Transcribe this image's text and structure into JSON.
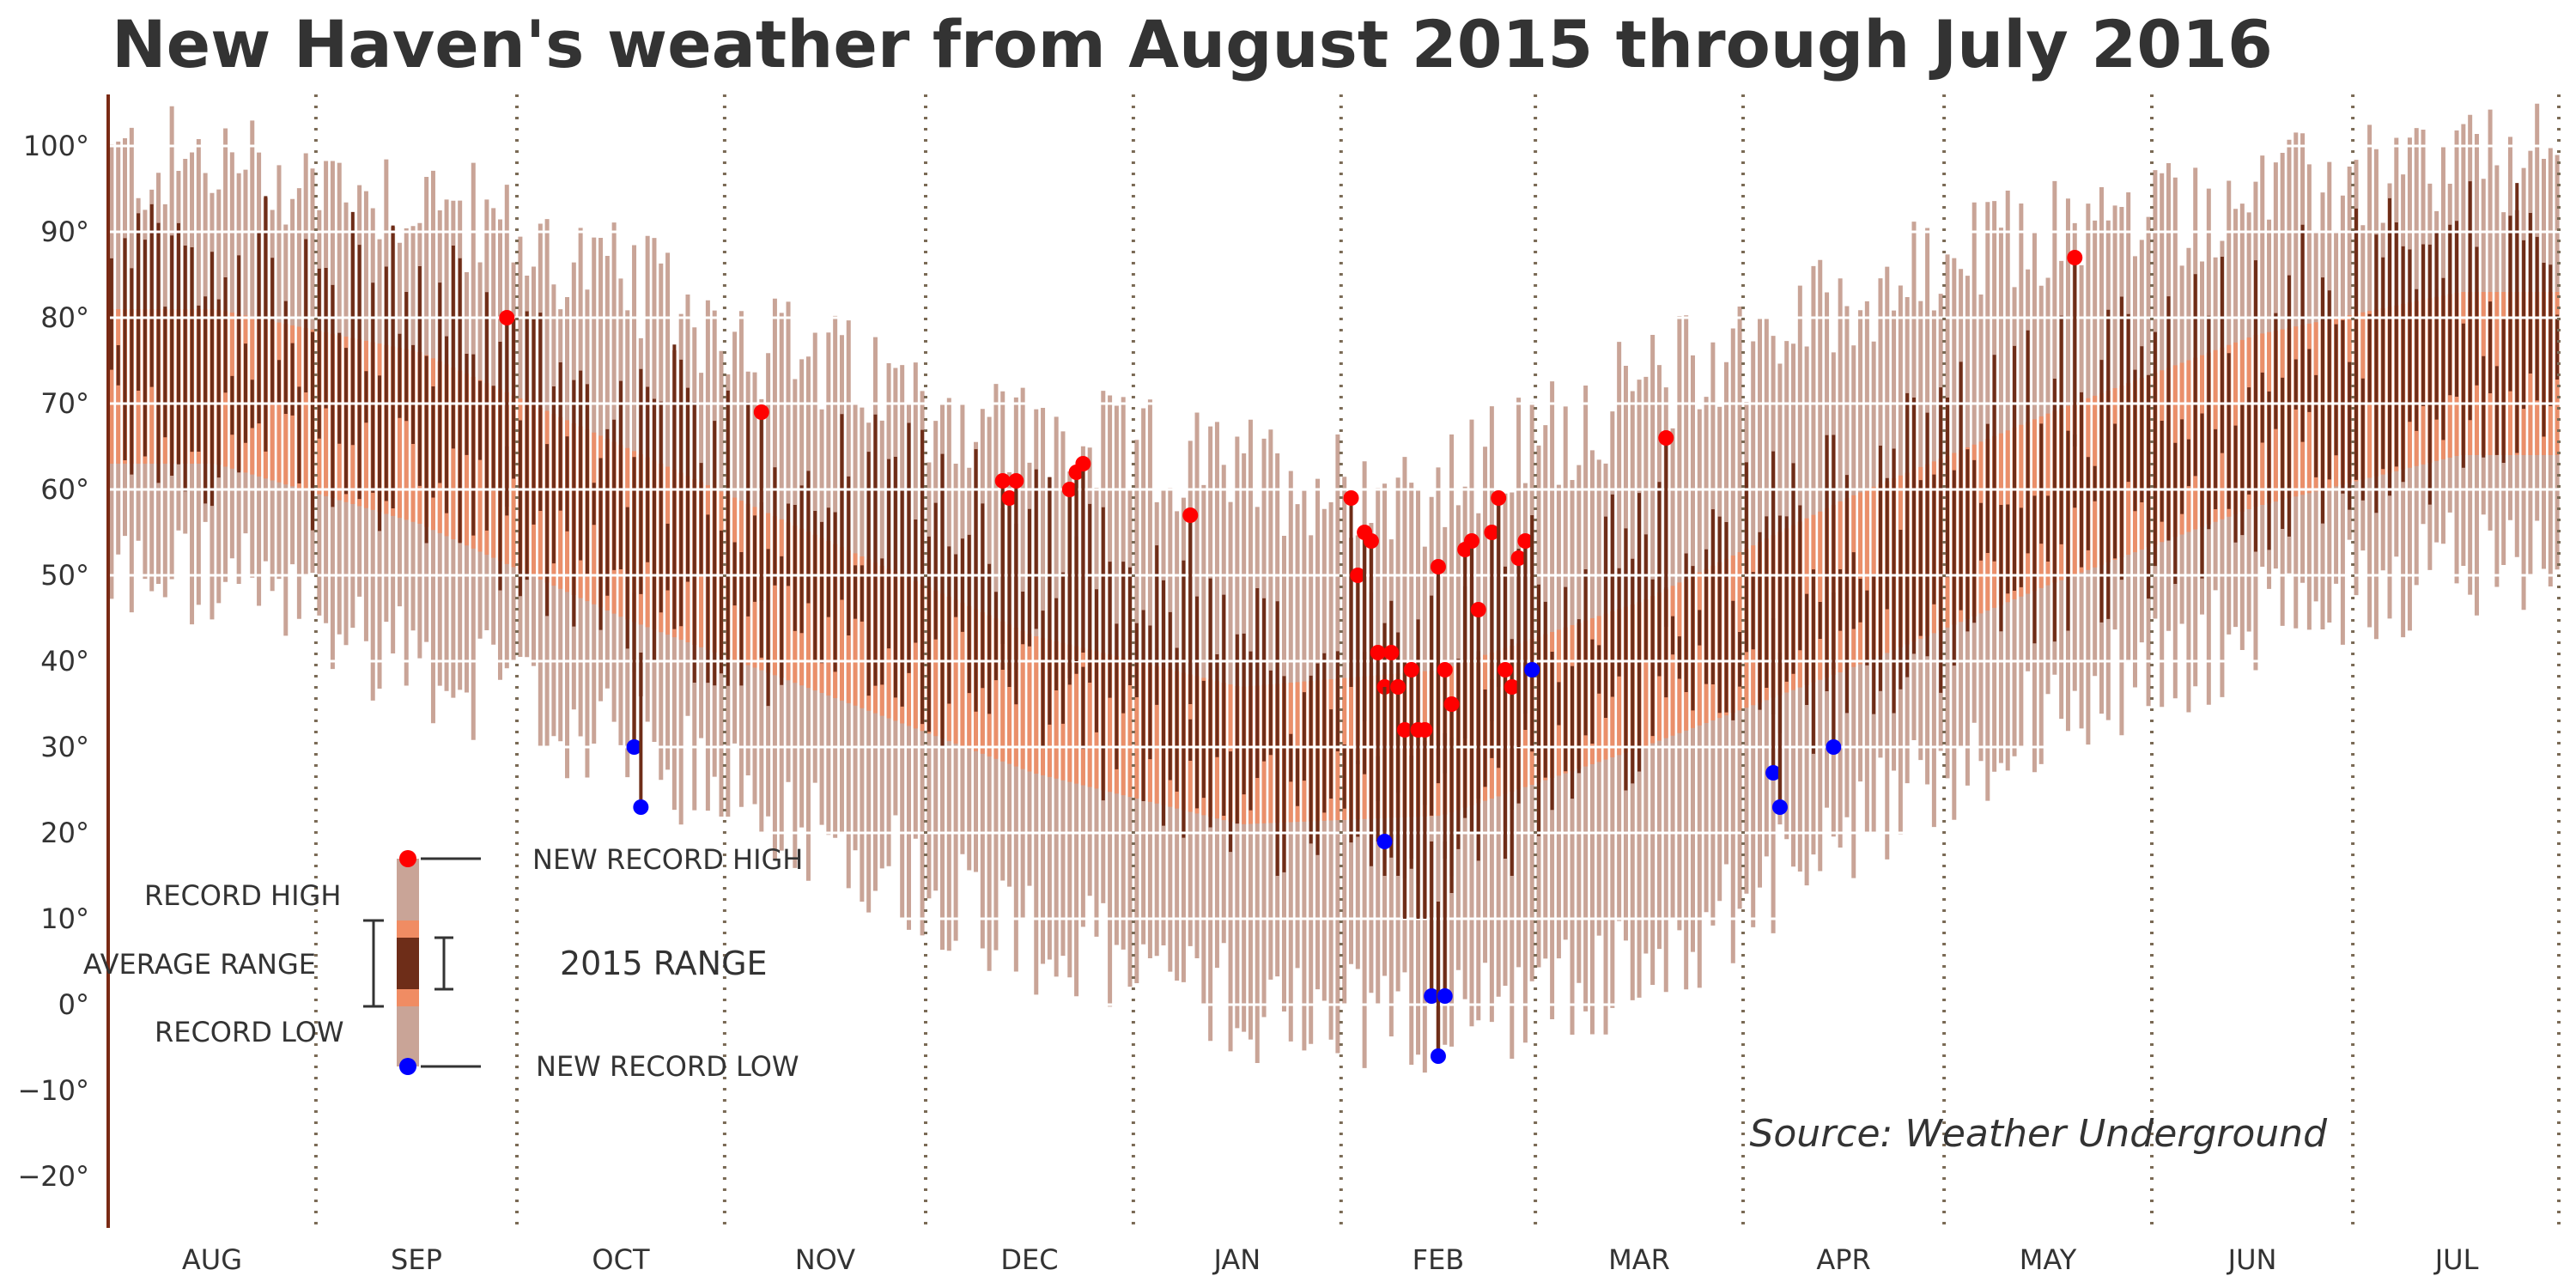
{
  "chart_data": {
    "type": "bar",
    "title": "New Haven's weather from August 2015 through July 2016",
    "xlabel": "",
    "ylabel": "",
    "ylim": [
      -26,
      106
    ],
    "y_ticks": [
      100,
      90,
      80,
      70,
      60,
      50,
      40,
      30,
      20,
      10,
      0,
      -10,
      -20
    ],
    "y_tick_labels": [
      "100°",
      "90°",
      "80°",
      "70°",
      "60°",
      "50°",
      "40°",
      "30°",
      "20°",
      "10°",
      "0°",
      "−10°",
      "−20°"
    ],
    "month_labels": [
      "AUG",
      "SEP",
      "OCT",
      "NOV",
      "DEC",
      "JAN",
      "FEB",
      "MAR",
      "APR",
      "MAY",
      "JUN",
      "JUL"
    ],
    "month_days": [
      31,
      30,
      31,
      30,
      31,
      31,
      29,
      31,
      30,
      31,
      30,
      31
    ],
    "start_date": "2015-08-01",
    "grid": true,
    "series": [
      {
        "name": "RECORD HIGH",
        "color": "#c9a497"
      },
      {
        "name": "RECORD LOW",
        "color": "#c9a497"
      },
      {
        "name": "AVERAGE RANGE",
        "color": "#f08c63"
      },
      {
        "name": "2015 RANGE",
        "color": "#6e2d18"
      }
    ],
    "record_profile": {
      "record_high_by_month": [
        98,
        94,
        84,
        74,
        66,
        62,
        60,
        72,
        82,
        90,
        94,
        98
      ],
      "record_low_by_month": [
        50,
        40,
        30,
        20,
        8,
        0,
        -2,
        4,
        20,
        34,
        44,
        52
      ],
      "avg_high_by_month": [
        81,
        76,
        65,
        54,
        43,
        37,
        39,
        47,
        59,
        69,
        78,
        83
      ],
      "avg_low_by_month": [
        63,
        56,
        45,
        36,
        27,
        21,
        22,
        30,
        39,
        49,
        58,
        64
      ],
      "daily_high_by_month": [
        84,
        81,
        68,
        60,
        54,
        38,
        40,
        50,
        58,
        70,
        79,
        85
      ],
      "daily_low_by_month": [
        66,
        60,
        47,
        40,
        36,
        23,
        22,
        33,
        38,
        50,
        60,
        67
      ]
    },
    "new_record_highs": [
      {
        "date": "2015-09-29",
        "value": 80
      },
      {
        "date": "2015-11-06",
        "value": 69
      },
      {
        "date": "2015-12-12",
        "value": 61
      },
      {
        "date": "2015-12-13",
        "value": 59
      },
      {
        "date": "2015-12-14",
        "value": 61
      },
      {
        "date": "2015-12-22",
        "value": 60
      },
      {
        "date": "2015-12-23",
        "value": 62
      },
      {
        "date": "2015-12-24",
        "value": 63
      },
      {
        "date": "2016-01-09",
        "value": 57
      },
      {
        "date": "2016-02-02",
        "value": 59
      },
      {
        "date": "2016-02-03",
        "value": 50
      },
      {
        "date": "2016-02-04",
        "value": 55
      },
      {
        "date": "2016-02-05",
        "value": 54
      },
      {
        "date": "2016-02-06",
        "value": 41
      },
      {
        "date": "2016-02-07",
        "value": 37
      },
      {
        "date": "2016-02-08",
        "value": 41
      },
      {
        "date": "2016-02-09",
        "value": 37
      },
      {
        "date": "2016-02-10",
        "value": 32
      },
      {
        "date": "2016-02-11",
        "value": 39
      },
      {
        "date": "2016-02-12",
        "value": 32
      },
      {
        "date": "2016-02-13",
        "value": 32
      },
      {
        "date": "2016-02-15",
        "value": 51
      },
      {
        "date": "2016-02-16",
        "value": 39
      },
      {
        "date": "2016-02-17",
        "value": 35
      },
      {
        "date": "2016-02-19",
        "value": 53
      },
      {
        "date": "2016-02-20",
        "value": 54
      },
      {
        "date": "2016-02-21",
        "value": 46
      },
      {
        "date": "2016-02-23",
        "value": 55
      },
      {
        "date": "2016-02-24",
        "value": 59
      },
      {
        "date": "2016-02-25",
        "value": 39
      },
      {
        "date": "2016-02-26",
        "value": 37
      },
      {
        "date": "2016-02-27",
        "value": 52
      },
      {
        "date": "2016-02-28",
        "value": 54
      },
      {
        "date": "2016-03-20",
        "value": 66
      },
      {
        "date": "2016-05-20",
        "value": 87
      }
    ],
    "new_record_lows": [
      {
        "date": "2015-10-18",
        "value": 30
      },
      {
        "date": "2015-10-19",
        "value": 23
      },
      {
        "date": "2016-02-07",
        "value": 19
      },
      {
        "date": "2016-02-14",
        "value": 1
      },
      {
        "date": "2016-02-15",
        "value": -6
      },
      {
        "date": "2016-02-16",
        "value": 1
      },
      {
        "date": "2016-02-29",
        "value": 39
      },
      {
        "date": "2016-04-05",
        "value": 27
      },
      {
        "date": "2016-04-06",
        "value": 23
      },
      {
        "date": "2016-04-14",
        "value": 30
      }
    ],
    "annotations": [
      "Source: Weather Underground"
    ]
  },
  "legend": {
    "record_high": "RECORD HIGH",
    "average_range": "AVERAGE RANGE",
    "record_low": "RECORD LOW",
    "new_record_high": "NEW RECORD HIGH",
    "range_2015": "2015 RANGE",
    "new_record_low": "NEW RECORD LOW"
  },
  "colors": {
    "record_band": "#c9a497",
    "average_band": "#f08c63",
    "actual_bar": "#6e2d18",
    "new_high_dot": "#ff0000",
    "new_low_dot": "#0000ff",
    "gridline": "#ffffff",
    "month_divider": "#7a6a55",
    "text": "#333333"
  }
}
